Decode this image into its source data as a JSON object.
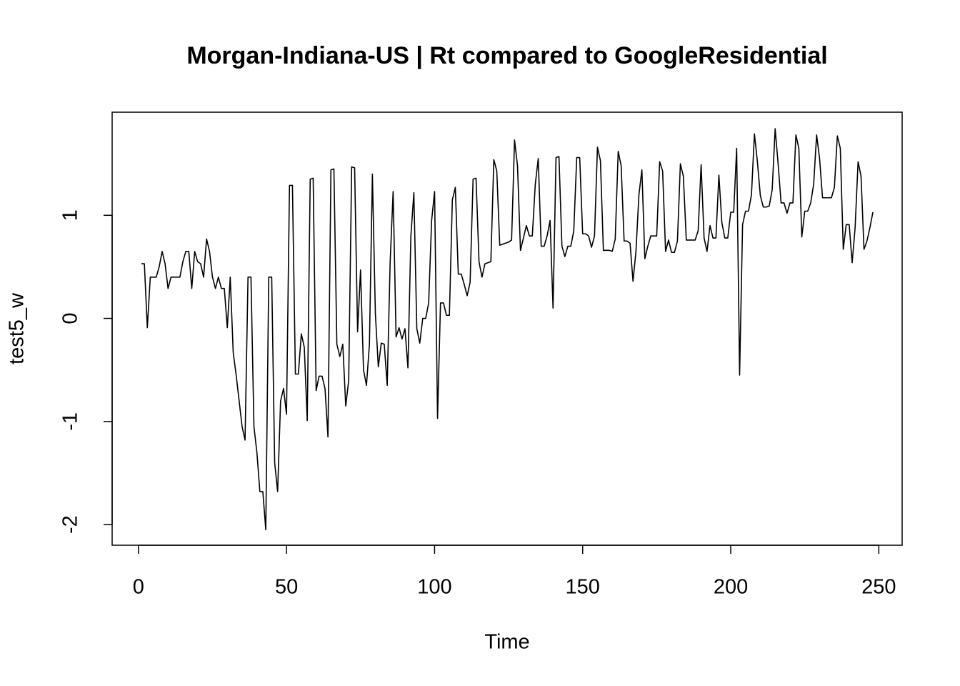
{
  "chart_data": {
    "type": "line",
    "title": "Morgan-Indiana-US | Rt compared to GoogleResidential",
    "xlabel": "Time",
    "ylabel": "test5_w",
    "color": "#000000",
    "x": [
      1,
      2,
      3,
      4,
      5,
      6,
      7,
      8,
      9,
      10,
      11,
      12,
      13,
      14,
      15,
      16,
      17,
      18,
      19,
      20,
      21,
      22,
      23,
      24,
      25,
      26,
      27,
      28,
      29,
      30,
      31,
      32,
      33,
      34,
      35,
      36,
      37,
      38,
      39,
      40,
      41,
      42,
      43,
      44,
      45,
      46,
      47,
      48,
      49,
      50,
      51,
      52,
      53,
      54,
      55,
      56,
      57,
      58,
      59,
      60,
      61,
      62,
      63,
      64,
      65,
      66,
      67,
      68,
      69,
      70,
      71,
      72,
      73,
      74,
      75,
      76,
      77,
      78,
      79,
      80,
      81,
      82,
      83,
      84,
      85,
      86,
      87,
      88,
      89,
      90,
      91,
      92,
      93,
      94,
      95,
      96,
      97,
      98,
      99,
      100,
      101,
      102,
      103,
      104,
      105,
      106,
      107,
      108,
      109,
      110,
      111,
      112,
      113,
      114,
      115,
      116,
      117,
      118,
      119,
      120,
      121,
      122,
      123,
      124,
      125,
      126,
      127,
      128,
      129,
      130,
      131,
      132,
      133,
      134,
      135,
      136,
      137,
      138,
      139,
      140,
      141,
      142,
      143,
      144,
      145,
      146,
      147,
      148,
      149,
      150,
      151,
      152,
      153,
      154,
      155,
      156,
      157,
      158,
      159,
      160,
      161,
      162,
      163,
      164,
      165,
      166,
      167,
      168,
      169,
      170,
      171,
      172,
      173,
      174,
      175,
      176,
      177,
      178,
      179,
      180,
      181,
      182,
      183,
      184,
      185,
      186,
      187,
      188,
      189,
      190,
      191,
      192,
      193,
      194,
      195,
      196,
      197,
      198,
      199,
      200,
      201,
      202,
      203,
      204,
      205,
      206,
      207,
      208,
      209,
      210,
      211,
      212,
      213,
      214,
      215,
      216,
      217,
      218,
      219,
      220,
      221,
      222,
      223,
      224,
      225,
      226,
      227,
      228,
      229,
      230,
      231,
      232,
      233,
      234,
      235,
      236,
      237,
      238,
      239,
      240,
      241,
      242,
      243,
      244,
      245,
      246,
      247,
      248
    ],
    "values": [
      0.53,
      0.53,
      -0.09,
      0.4,
      0.4,
      0.4,
      0.5,
      0.65,
      0.53,
      0.29,
      0.4,
      0.4,
      0.4,
      0.4,
      0.55,
      0.65,
      0.65,
      0.29,
      0.65,
      0.55,
      0.53,
      0.4,
      0.77,
      0.65,
      0.4,
      0.29,
      0.4,
      0.29,
      0.29,
      -0.09,
      0.4,
      -0.33,
      -0.55,
      -0.8,
      -1.05,
      -1.18,
      0.4,
      0.4,
      -1.05,
      -1.3,
      -1.68,
      -1.68,
      -2.05,
      0.4,
      0.4,
      -1.4,
      -1.68,
      -0.8,
      -0.68,
      -0.93,
      1.29,
      1.29,
      -0.54,
      -0.54,
      -0.15,
      -0.28,
      -0.99,
      1.35,
      1.36,
      -0.7,
      -0.56,
      -0.56,
      -0.68,
      -1.15,
      1.44,
      1.45,
      -0.25,
      -0.37,
      -0.25,
      -0.85,
      -0.6,
      1.47,
      1.46,
      -0.13,
      0.47,
      -0.5,
      -0.65,
      -0.25,
      1.4,
      0.05,
      -0.47,
      -0.24,
      -0.25,
      -0.65,
      0.55,
      1.23,
      -0.18,
      -0.09,
      -0.2,
      -0.1,
      -0.48,
      0.8,
      1.22,
      -0.1,
      -0.24,
      0.0,
      0.0,
      0.15,
      0.95,
      1.23,
      -0.97,
      0.15,
      0.15,
      0.03,
      0.03,
      1.15,
      1.27,
      0.43,
      0.43,
      0.33,
      0.22,
      0.35,
      1.35,
      1.36,
      0.55,
      0.4,
      0.53,
      0.54,
      0.55,
      1.54,
      1.43,
      0.71,
      0.72,
      0.73,
      0.74,
      0.76,
      1.73,
      1.48,
      0.66,
      0.78,
      0.9,
      0.8,
      0.8,
      1.3,
      1.55,
      0.7,
      0.7,
      0.8,
      0.95,
      0.1,
      1.56,
      1.57,
      0.7,
      0.6,
      0.7,
      0.7,
      0.85,
      1.56,
      1.56,
      0.82,
      0.82,
      0.8,
      0.69,
      0.8,
      1.66,
      1.53,
      0.66,
      0.66,
      0.66,
      0.65,
      0.77,
      1.62,
      1.48,
      0.75,
      0.75,
      0.73,
      0.36,
      0.65,
      1.2,
      1.44,
      0.58,
      0.7,
      0.8,
      0.8,
      0.8,
      1.52,
      1.43,
      0.65,
      0.76,
      0.64,
      0.64,
      0.75,
      1.5,
      1.38,
      0.76,
      0.76,
      0.76,
      0.76,
      0.85,
      1.49,
      0.78,
      0.65,
      0.9,
      0.78,
      0.78,
      1.39,
      0.93,
      0.78,
      0.78,
      1.03,
      1.03,
      1.65,
      -0.55,
      0.91,
      1.04,
      1.04,
      1.2,
      1.79,
      1.52,
      1.19,
      1.08,
      1.08,
      1.09,
      1.25,
      1.84,
      1.5,
      1.12,
      1.12,
      1.02,
      1.12,
      1.12,
      1.78,
      1.65,
      0.79,
      1.04,
      1.04,
      1.12,
      1.3,
      1.78,
      1.55,
      1.17,
      1.17,
      1.17,
      1.17,
      1.27,
      1.77,
      1.65,
      0.67,
      0.91,
      0.91,
      0.54,
      0.88,
      1.52,
      1.38,
      0.67,
      0.75,
      0.88,
      1.03
    ],
    "xlim": [
      -8.88,
      257.88
    ],
    "ylim": [
      -2.2,
      2.0
    ],
    "xticks": [
      0,
      50,
      100,
      150,
      200,
      250
    ],
    "yticks": [
      -2,
      -1,
      0,
      1
    ]
  }
}
